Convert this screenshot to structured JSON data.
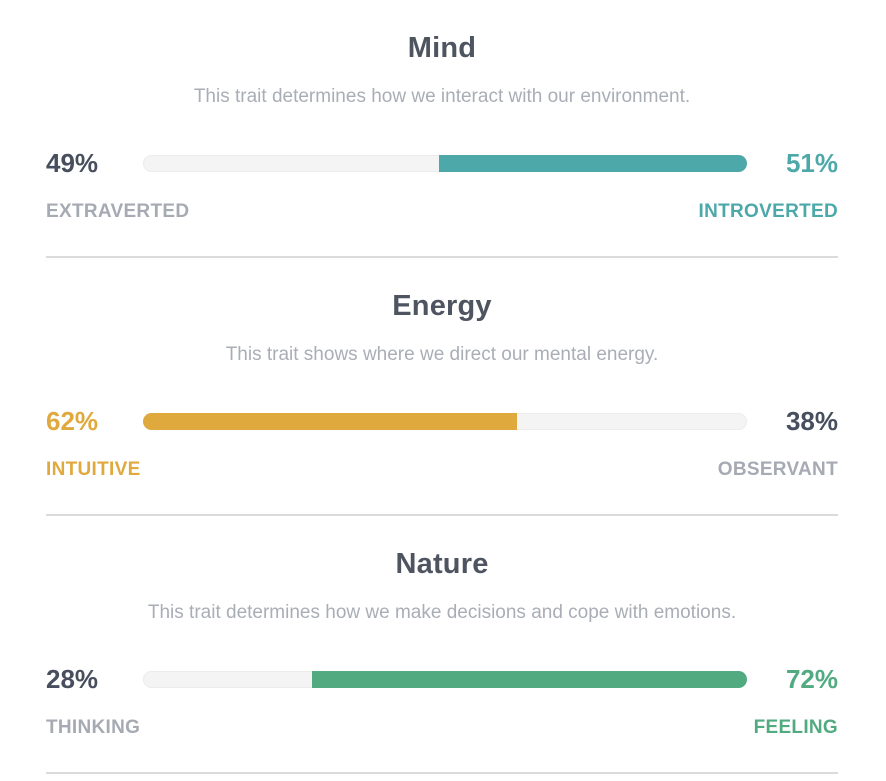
{
  "colors": {
    "teal": "#4DA8A9",
    "amber": "#E0A93E",
    "green": "#52AA80",
    "slate_title": "#4E5460",
    "slate_percent": "#474E5D",
    "gray_text": "#A5AAB3",
    "track": "#F4F4F4",
    "divider": "#DBDBDB"
  },
  "traits": [
    {
      "title": "Mind",
      "description": "This trait determines how we interact with our environment.",
      "left_pct": "49%",
      "right_pct": "51%",
      "left_label": "EXTRAVERTED",
      "right_label": "INTROVERTED",
      "fill_pct": 51,
      "fill_side": "right",
      "winner_side": "right",
      "fill_color": "#4DA8A9"
    },
    {
      "title": "Energy",
      "description": "This trait shows where we direct our mental energy.",
      "left_pct": "62%",
      "right_pct": "38%",
      "left_label": "INTUITIVE",
      "right_label": "OBSERVANT",
      "fill_pct": 62,
      "fill_side": "left",
      "winner_side": "left",
      "fill_color": "#E0A93E"
    },
    {
      "title": "Nature",
      "description": "This trait determines how we make decisions and cope with emotions.",
      "left_pct": "28%",
      "right_pct": "72%",
      "left_label": "THINKING",
      "right_label": "FEELING",
      "fill_pct": 72,
      "fill_side": "right",
      "winner_side": "right",
      "fill_color": "#52AA80"
    }
  ]
}
